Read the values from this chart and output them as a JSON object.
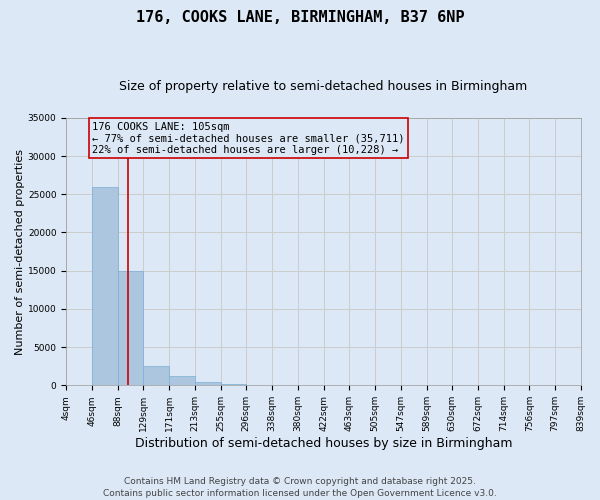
{
  "title": "176, COOKS LANE, BIRMINGHAM, B37 6NP",
  "subtitle": "Size of property relative to semi-detached houses in Birmingham",
  "xlabel": "Distribution of semi-detached houses by size in Birmingham",
  "ylabel": "Number of semi-detached properties",
  "footer_line1": "Contains HM Land Registry data © Crown copyright and database right 2025.",
  "footer_line2": "Contains public sector information licensed under the Open Government Licence v3.0.",
  "annotation_title": "176 COOKS LANE: 105sqm",
  "annotation_line1": "← 77% of semi-detached houses are smaller (35,711)",
  "annotation_line2": "22% of semi-detached houses are larger (10,228) →",
  "property_size": 105,
  "bar_edges": [
    4,
    46,
    88,
    129,
    171,
    213,
    255,
    296,
    338,
    380,
    422,
    463,
    505,
    547,
    589,
    630,
    672,
    714,
    756,
    797,
    839
  ],
  "bar_heights": [
    50,
    26000,
    15000,
    2500,
    1200,
    500,
    200,
    80,
    40,
    25,
    15,
    10,
    6,
    4,
    3,
    2,
    1,
    1,
    0,
    0,
    0
  ],
  "bar_color": "#adc6e0",
  "bar_edge_color": "#7aafd4",
  "grid_color": "#cccccc",
  "vline_color": "#cc0000",
  "annotation_box_color": "#cc0000",
  "background_color": "#dce8f5",
  "ylim": [
    0,
    35000
  ],
  "yticks": [
    0,
    5000,
    10000,
    15000,
    20000,
    25000,
    30000,
    35000
  ],
  "title_fontsize": 11,
  "subtitle_fontsize": 9,
  "annotation_fontsize": 7.5,
  "tick_label_fontsize": 6.5,
  "ylabel_fontsize": 8,
  "xlabel_fontsize": 9,
  "footer_fontsize": 6.5
}
